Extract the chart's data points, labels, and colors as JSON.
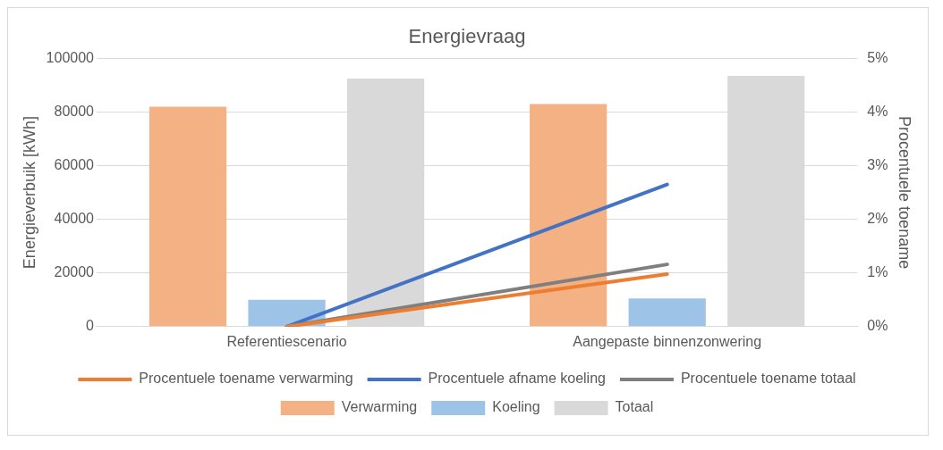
{
  "chart_data": {
    "type": "bar",
    "title": "Energievraag",
    "ylabel": "Energieverbuik [kWh]",
    "y2label": "Procentuele toename",
    "categories": [
      "Referentiescenario",
      "Aangepaste binnenzonwering"
    ],
    "series": [
      {
        "name": "Verwarming",
        "color": "#f4b183",
        "values": [
          82000,
          83000
        ]
      },
      {
        "name": "Koeling",
        "color": "#9dc3e6",
        "values": [
          10000,
          10500
        ]
      },
      {
        "name": "Totaal",
        "color": "#d9d9d9",
        "values": [
          92500,
          93500
        ]
      },
      {
        "name": "Procentuele toename verwarming",
        "type": "line",
        "axis": "y2",
        "color": "#ed7d31",
        "values": [
          0,
          0.98
        ]
      },
      {
        "name": "Procentuele afname koeling",
        "type": "line",
        "axis": "y2",
        "color": "#4472c4",
        "values": [
          0,
          2.65
        ]
      },
      {
        "name": "Procentuele toename totaal",
        "type": "line",
        "axis": "y2",
        "color": "#7f7f7f",
        "values": [
          0,
          1.16
        ]
      }
    ],
    "ylim": [
      0,
      100000
    ],
    "yticks": [
      0,
      20000,
      40000,
      60000,
      80000,
      100000
    ],
    "y2lim": [
      0,
      5
    ],
    "y2ticks": [
      {
        "value": 0,
        "label": "0%"
      },
      {
        "value": 1,
        "label": "1%"
      },
      {
        "value": 2,
        "label": "2%"
      },
      {
        "value": 3,
        "label": "3%"
      },
      {
        "value": 4,
        "label": "4%"
      },
      {
        "value": 5,
        "label": "5%"
      }
    ],
    "grid": "y",
    "legend": "bottom",
    "marker": "none",
    "line_style": "solid"
  }
}
